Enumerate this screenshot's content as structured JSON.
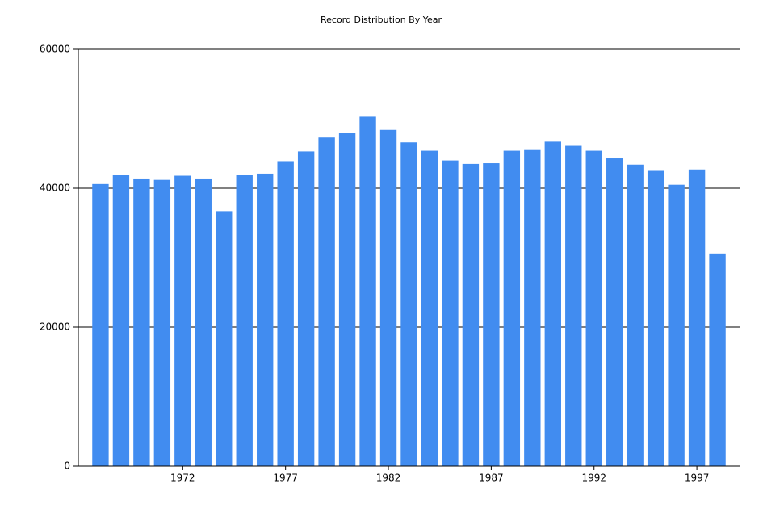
{
  "chart_data": {
    "type": "bar",
    "title": "Record Distribution By Year",
    "categories": [
      null,
      null,
      null,
      null,
      "1972",
      null,
      null,
      null,
      null,
      "1977",
      null,
      null,
      null,
      null,
      "1982",
      null,
      null,
      null,
      null,
      "1987",
      null,
      null,
      null,
      null,
      "1992",
      null,
      null,
      null,
      null,
      "1997",
      null
    ],
    "values": [
      40600,
      41900,
      41400,
      41200,
      41800,
      41400,
      36700,
      41900,
      42100,
      43900,
      45300,
      47300,
      48000,
      50300,
      48400,
      46600,
      45400,
      44000,
      43500,
      43600,
      45400,
      45500,
      46700,
      46100,
      45400,
      44300,
      43400,
      42500,
      40500,
      42700,
      30600
    ],
    "color": "#418cf0",
    "ylim": [
      0,
      60000
    ],
    "yticks": [
      0,
      20000,
      40000,
      60000
    ],
    "grid": true
  }
}
